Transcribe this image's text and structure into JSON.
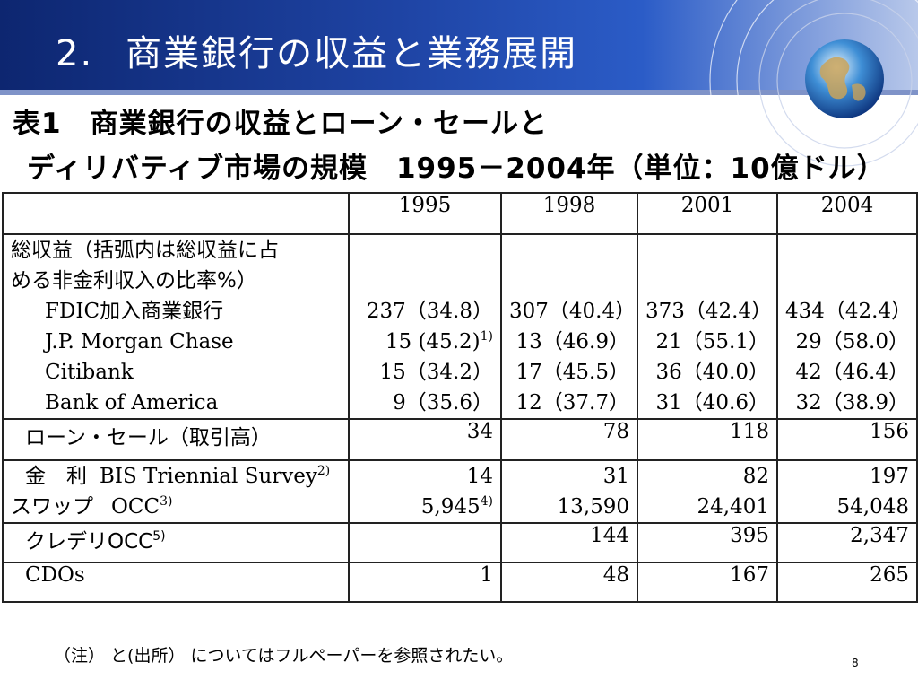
{
  "header": {
    "number": "2.",
    "title": "商業銀行の収益と業務展開"
  },
  "subtitle": {
    "line1": "表1　商業銀行の収益とローン・セールと",
    "line2": "ディリバティブ市場の規模　1995－2004年（単位：10億ドル）"
  },
  "table": {
    "years": [
      "1995",
      "1998",
      "2001",
      "2004"
    ],
    "total": {
      "label_line1": "総収益（括弧内は総収益に占",
      "label_line2": "める非金利収入の比率%）",
      "rows": [
        {
          "name": "FDIC加入商業銀行",
          "values": [
            "237（34.8）",
            "307（40.4）",
            "373（42.4）",
            "434（42.4）"
          ]
        },
        {
          "name": "J.P. Morgan Chase",
          "values": [
            "15 (45.2)",
            "13（46.9）",
            "21（55.1）",
            "29（58.0）"
          ],
          "note0": "1)"
        },
        {
          "name": "Citibank",
          "values": [
            "15（34.2）",
            "17（45.5）",
            "36（40.0）",
            "42（46.4）"
          ]
        },
        {
          "name": "Bank of America",
          "values": [
            "9（35.6）",
            "12（37.7）",
            "31（40.6）",
            "32（38.9）"
          ]
        }
      ]
    },
    "loan_sale": {
      "label": "ローン・セール（取引高）",
      "values": [
        "34",
        "78",
        "118",
        "156"
      ]
    },
    "swap": {
      "label_a": "金　利",
      "label_b": "スワップ",
      "bis_label": "BIS Triennial Survey",
      "bis_note": "2)",
      "occ_label": "OCC",
      "occ_note": "3)",
      "bis_values": [
        "14",
        "31",
        "82",
        "197"
      ],
      "occ_values": [
        "5,945",
        "13,590",
        "24,401",
        "54,048"
      ],
      "occ_note0": "4)"
    },
    "credit": {
      "label": "クレデリOCC",
      "note": "5)",
      "values": [
        "",
        "144",
        "395",
        "2,347"
      ]
    },
    "cdos": {
      "label": "CDOs",
      "values": [
        "1",
        "48",
        "167",
        "265"
      ]
    }
  },
  "footnote": "（注） と(出所） についてはフルペーパーを参照されたい。",
  "page_number": "8",
  "colors": {
    "header_dark": "#0d2670",
    "header_mid": "#2b5cc7",
    "header_light": "#b8c8ea"
  },
  "icons": {
    "globe": "globe-icon"
  }
}
